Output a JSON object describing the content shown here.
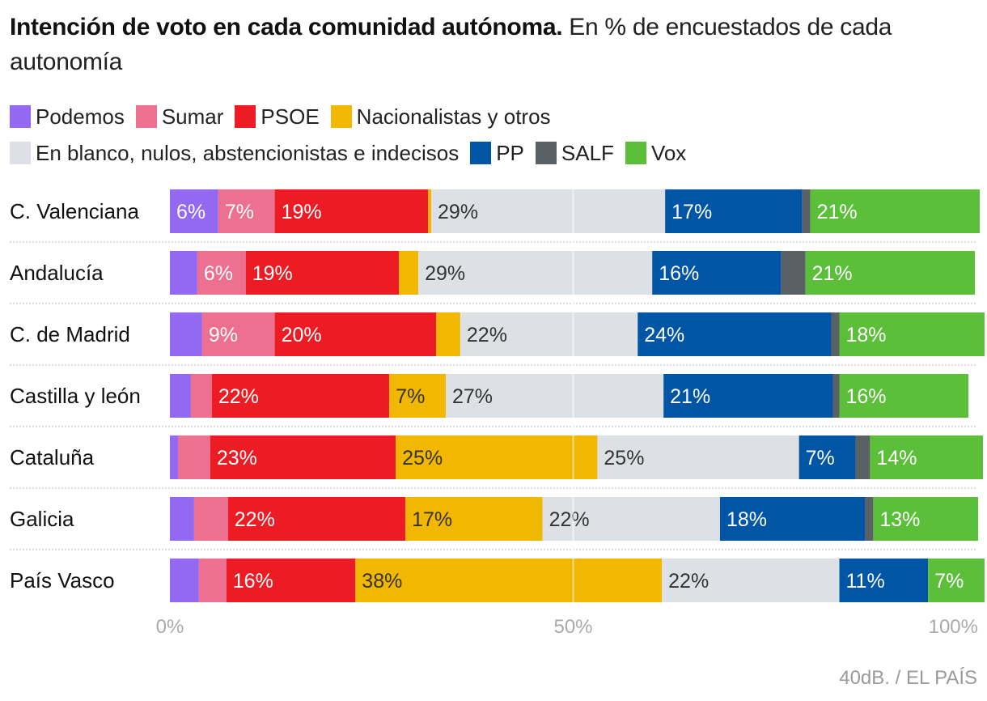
{
  "header": {
    "title_bold": "Intención de voto en cada comunidad autónoma.",
    "title_rest": " En % de encuestados de cada autonomía"
  },
  "source": "40dB. / EL PAÍS",
  "chart_data": {
    "type": "bar",
    "orientation": "horizontal",
    "stacked": true,
    "title": "Intención de voto en cada comunidad autónoma.",
    "subtitle": "En % de encuestados de cada autonomía",
    "xlabel": "",
    "ylabel": "",
    "xlim": [
      0,
      100
    ],
    "x_ticks": [
      "0%",
      "50%",
      "100%"
    ],
    "grid": "vertical line at 50%",
    "legend_position": "top",
    "categories": [
      "C. Valenciana",
      "Andalucía",
      "C. de Madrid",
      "Castilla y león",
      "Cataluña",
      "Galicia",
      "País Vasco"
    ],
    "series": [
      {
        "name": "Podemos",
        "color": "#9369f2",
        "label_color": "#ffffff",
        "values": [
          6,
          3.4,
          4,
          2.6,
          1,
          3,
          3.6
        ],
        "labels": [
          "6%",
          "",
          "",
          "",
          "",
          "",
          ""
        ]
      },
      {
        "name": "Sumar",
        "color": "#ee7090",
        "label_color": "#ffffff",
        "values": [
          7,
          6,
          9,
          2.6,
          4,
          4.2,
          3.4
        ],
        "labels": [
          "7%",
          "6%",
          "9%",
          "",
          "",
          "",
          ""
        ]
      },
      {
        "name": "PSOE",
        "color": "#ed1c24",
        "label_color": "#ffffff",
        "values": [
          19,
          19,
          20,
          22,
          23,
          22,
          16
        ],
        "labels": [
          "19%",
          "19%",
          "20%",
          "22%",
          "23%",
          "22%",
          "16%"
        ]
      },
      {
        "name": "Nacionalistas y otros",
        "color": "#f2b700",
        "label_color": "#333333",
        "values": [
          0.4,
          2.4,
          3,
          7,
          25,
          17,
          38
        ],
        "labels": [
          "",
          "",
          "",
          "7%",
          "25%",
          "17%",
          "38%"
        ]
      },
      {
        "name": "En blanco, nulos, abstencionistas e indecisos",
        "color": "#dde1e5",
        "label_color": "#333333",
        "values": [
          29,
          29,
          22,
          27,
          25,
          22,
          22
        ],
        "labels": [
          "29%",
          "29%",
          "22%",
          "27%",
          "25%",
          "22%",
          "22%"
        ]
      },
      {
        "name": "PP",
        "color": "#0055a5",
        "label_color": "#ffffff",
        "values": [
          17,
          16,
          24,
          21,
          7,
          18,
          11
        ],
        "labels": [
          "17%",
          "16%",
          "24%",
          "21%",
          "7%",
          "18%",
          "11%"
        ]
      },
      {
        "name": "SALF",
        "color": "#5a6164",
        "label_color": "#ffffff",
        "values": [
          1,
          3,
          1,
          0.8,
          1.8,
          1,
          0
        ],
        "labels": [
          "",
          "",
          "",
          "",
          "",
          "",
          ""
        ]
      },
      {
        "name": "Vox",
        "color": "#5bbf3a",
        "label_color": "#ffffff",
        "values": [
          21,
          21,
          18,
          16,
          14,
          13,
          7
        ],
        "labels": [
          "21%",
          "21%",
          "18%",
          "16%",
          "14%",
          "13%",
          "7%"
        ]
      }
    ]
  }
}
